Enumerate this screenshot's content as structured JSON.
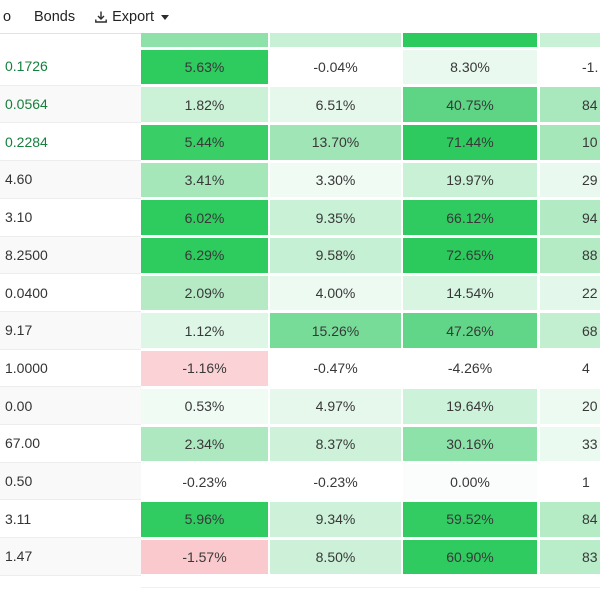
{
  "toolbar": {
    "tab_partial": "o",
    "tab_bonds": "Bonds",
    "export_label": "Export"
  },
  "colors": {
    "label_green": "#15803d",
    "label_dark": "#333333",
    "row_alt_bg": "#f9f9f9",
    "row_bg": "#ffffff",
    "strong_green": "#2ecc5f",
    "negative_pink": "#fbd3d6"
  },
  "table": {
    "header_sliver_colors": [
      "#8ee1a9",
      "#c7f0d4",
      "#2dca5e",
      "#c9f1d5"
    ],
    "rows": [
      {
        "label": "0.1726",
        "label_green": true,
        "cells": [
          {
            "text": "5.63%",
            "bg": "#2ecc5f"
          },
          {
            "text": "-0.04%",
            "bg": "#ffffff"
          },
          {
            "text": "8.30%",
            "bg": "#e9f9ef"
          },
          {
            "text": "-1.",
            "bg": "#ffffff"
          }
        ]
      },
      {
        "label": "0.0564",
        "label_green": true,
        "cells": [
          {
            "text": "1.82%",
            "bg": "#cbf1d7"
          },
          {
            "text": "6.51%",
            "bg": "#e6f8ec"
          },
          {
            "text": "40.75%",
            "bg": "#5ed485"
          },
          {
            "text": "84",
            "bg": "#a9e8bc"
          }
        ]
      },
      {
        "label": "0.2284",
        "label_green": true,
        "cells": [
          {
            "text": "5.44%",
            "bg": "#39ce66"
          },
          {
            "text": "13.70%",
            "bg": "#9fe5b6"
          },
          {
            "text": "71.44%",
            "bg": "#2eca5f"
          },
          {
            "text": "10",
            "bg": "#a6e7ba"
          }
        ]
      },
      {
        "label": "4.60",
        "label_green": false,
        "cells": [
          {
            "text": "3.41%",
            "bg": "#a6e7ba"
          },
          {
            "text": "3.30%",
            "bg": "#effbf3"
          },
          {
            "text": "19.97%",
            "bg": "#c8f1d5"
          },
          {
            "text": "29",
            "bg": "#e9f9ef"
          }
        ]
      },
      {
        "label": "3.10",
        "label_green": false,
        "cells": [
          {
            "text": "6.02%",
            "bg": "#2ecc5f"
          },
          {
            "text": "9.35%",
            "bg": "#c9f1d6"
          },
          {
            "text": "66.12%",
            "bg": "#2fcb60"
          },
          {
            "text": "94",
            "bg": "#b2eac3"
          }
        ]
      },
      {
        "label": "8.2500",
        "label_green": false,
        "cells": [
          {
            "text": "6.29%",
            "bg": "#2ecc5f"
          },
          {
            "text": "9.58%",
            "bg": "#c6f0d4"
          },
          {
            "text": "72.65%",
            "bg": "#2cca5d"
          },
          {
            "text": "88",
            "bg": "#b4ebc4"
          }
        ]
      },
      {
        "label": "0.0400",
        "label_green": false,
        "cells": [
          {
            "text": "2.09%",
            "bg": "#b5eac5"
          },
          {
            "text": "4.00%",
            "bg": "#ecfaf1"
          },
          {
            "text": "14.54%",
            "bg": "#d8f5e2"
          },
          {
            "text": "22",
            "bg": "#e3f8ea"
          }
        ]
      },
      {
        "label": "9.17",
        "label_green": false,
        "cells": [
          {
            "text": "1.12%",
            "bg": "#ddf6e6"
          },
          {
            "text": "15.26%",
            "bg": "#78dc99"
          },
          {
            "text": "47.26%",
            "bg": "#62d688"
          },
          {
            "text": "68",
            "bg": "#c3efd1"
          }
        ]
      },
      {
        "label": "1.0000",
        "label_green": false,
        "cells": [
          {
            "text": "-1.16%",
            "bg": "#fbd3d6"
          },
          {
            "text": "-0.47%",
            "bg": "#ffffff"
          },
          {
            "text": "-4.26%",
            "bg": "#ffffff"
          },
          {
            "text": "4",
            "bg": "#ffffff"
          }
        ]
      },
      {
        "label": "0.00",
        "label_green": false,
        "cells": [
          {
            "text": "0.53%",
            "bg": "#effbf3"
          },
          {
            "text": "4.97%",
            "bg": "#e6f8ec"
          },
          {
            "text": "19.64%",
            "bg": "#cdf2da"
          },
          {
            "text": "20",
            "bg": "#edfaf1"
          }
        ]
      },
      {
        "label": "67.00",
        "label_green": false,
        "cells": [
          {
            "text": "2.34%",
            "bg": "#aee8c0"
          },
          {
            "text": "8.37%",
            "bg": "#cdf2d9"
          },
          {
            "text": "30.16%",
            "bg": "#8ce2a8"
          },
          {
            "text": "33",
            "bg": "#eafaf0"
          }
        ]
      },
      {
        "label": "0.50",
        "label_green": false,
        "cells": [
          {
            "text": "-0.23%",
            "bg": "#ffffff"
          },
          {
            "text": "-0.23%",
            "bg": "#ffffff"
          },
          {
            "text": "0.00%",
            "bg": "#fbfdfc"
          },
          {
            "text": "1",
            "bg": "#ffffff"
          }
        ]
      },
      {
        "label": "3.11",
        "label_green": false,
        "cells": [
          {
            "text": "5.96%",
            "bg": "#30cb61"
          },
          {
            "text": "9.34%",
            "bg": "#cdf2d9"
          },
          {
            "text": "59.52%",
            "bg": "#33cc63"
          },
          {
            "text": "84",
            "bg": "#b5ecc6"
          }
        ]
      },
      {
        "label": "1.47",
        "label_green": false,
        "cells": [
          {
            "text": "-1.57%",
            "bg": "#f9c9ce"
          },
          {
            "text": "8.50%",
            "bg": "#ccf1d8"
          },
          {
            "text": "60.90%",
            "bg": "#2fcb60"
          },
          {
            "text": "83",
            "bg": "#b9edc9"
          }
        ]
      }
    ]
  }
}
